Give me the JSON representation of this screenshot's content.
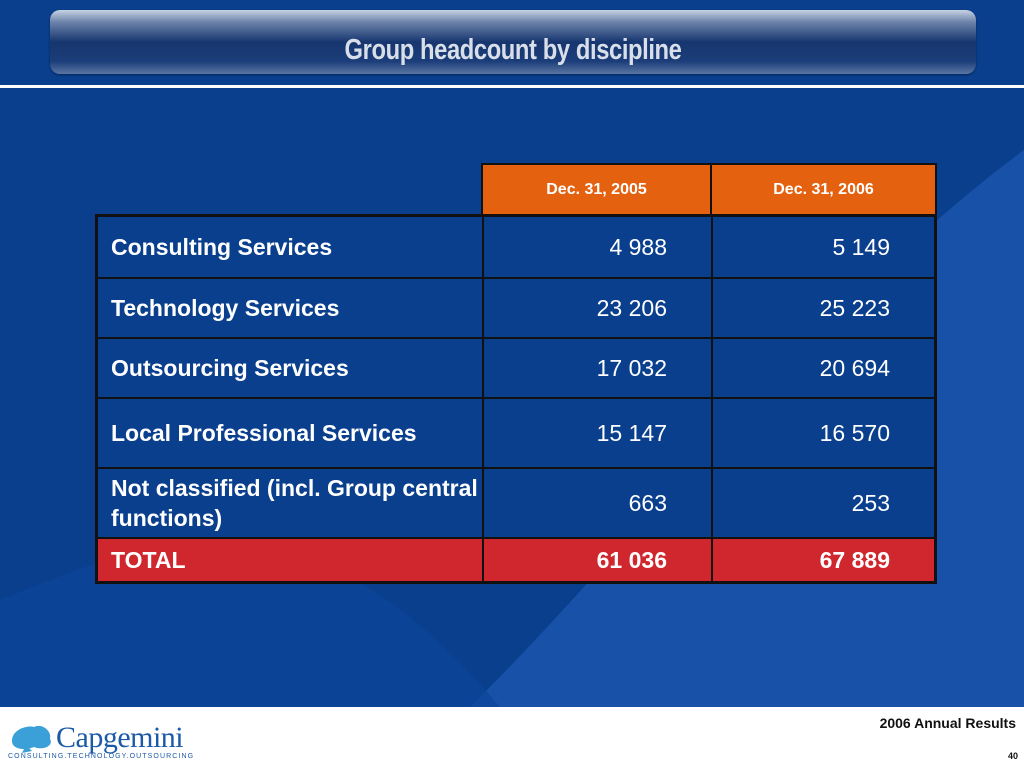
{
  "slide": {
    "title": "Group headcount by discipline"
  },
  "table": {
    "headers": [
      "Dec. 31, 2005",
      "Dec. 31, 2006"
    ],
    "rows": [
      {
        "label": "Consulting Services",
        "v2005": "4 988",
        "v2006": "5 149"
      },
      {
        "label": "Technology Services",
        "v2005": "23 206",
        "v2006": "25 223"
      },
      {
        "label": "Outsourcing Services",
        "v2005": "17 032",
        "v2006": "20 694"
      },
      {
        "label": "Local Professional Services",
        "v2005": "15 147",
        "v2006": "16 570"
      },
      {
        "label": "Not classified (incl. Group central functions)",
        "v2005": "663",
        "v2006": "253"
      }
    ],
    "total": {
      "label": "TOTAL",
      "v2005": "61 036",
      "v2006": "67 889"
    }
  },
  "footer": {
    "logo_text": "Capgemini",
    "logo_tagline": "CONSULTING.TECHNOLOGY.OUTSOURCING",
    "report_title": "2006 Annual Results",
    "page_number": "40"
  },
  "colors": {
    "background": "#0a3f8e",
    "header_orange": "#e4620f",
    "total_red": "#d0262e"
  }
}
